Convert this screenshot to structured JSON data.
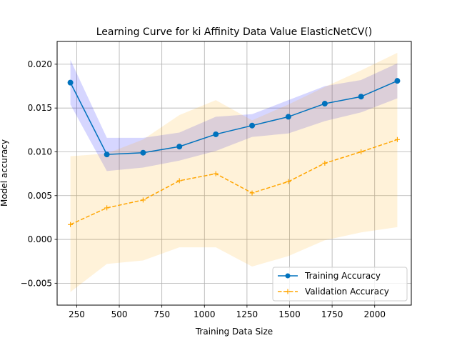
{
  "chart_data": {
    "type": "line",
    "title": "Learning Curve for ki Affinity Data Value ElasticNetCV()",
    "xlabel": "Training Data Size",
    "ylabel": "Model accuracy",
    "xlim": [
      135,
      2215
    ],
    "ylim": [
      -0.0075,
      0.0226
    ],
    "xticks": [
      250,
      500,
      750,
      1000,
      1250,
      1500,
      1750,
      2000
    ],
    "xtick_labels": [
      "250",
      "500",
      "750",
      "1000",
      "1250",
      "1500",
      "1750",
      "2000"
    ],
    "yticks": [
      -0.005,
      0.0,
      0.005,
      0.01,
      0.015,
      0.02
    ],
    "ytick_labels": [
      "−0.005",
      "0.000",
      "0.005",
      "0.010",
      "0.015",
      "0.020"
    ],
    "grid": true,
    "legend_position": "lower-right",
    "x": [
      213,
      427,
      640,
      853,
      1067,
      1280,
      1493,
      1707,
      1920,
      2133
    ],
    "series": [
      {
        "name": "Training Accuracy",
        "color": "#0072BD",
        "band_color": "#0000FF",
        "marker": "circle",
        "linestyle": "solid",
        "values": [
          0.0179,
          0.0097,
          0.0099,
          0.0106,
          0.012,
          0.013,
          0.014,
          0.0155,
          0.0163,
          0.0181
        ],
        "upper": [
          0.0205,
          0.0116,
          0.0116,
          0.0122,
          0.014,
          0.0143,
          0.0159,
          0.0175,
          0.0182,
          0.0201
        ],
        "lower": [
          0.0154,
          0.0078,
          0.0082,
          0.009,
          0.0101,
          0.0117,
          0.0121,
          0.0135,
          0.0145,
          0.0161
        ]
      },
      {
        "name": "Validation Accuracy",
        "color": "#FFA500",
        "band_color": "#FFA500",
        "marker": "plus",
        "linestyle": "dashed",
        "values": [
          0.0017,
          0.0036,
          0.0045,
          0.0067,
          0.0075,
          0.0053,
          0.0066,
          0.0087,
          0.01,
          0.0114
        ],
        "upper": [
          0.0095,
          0.0098,
          0.0114,
          0.0142,
          0.0159,
          0.0136,
          0.0154,
          0.0174,
          0.0193,
          0.0213
        ],
        "lower": [
          -0.006,
          -0.0028,
          -0.0024,
          -0.0009,
          -0.0009,
          -0.0031,
          -0.0019,
          -0.0001,
          0.0008,
          0.0014
        ]
      }
    ]
  }
}
